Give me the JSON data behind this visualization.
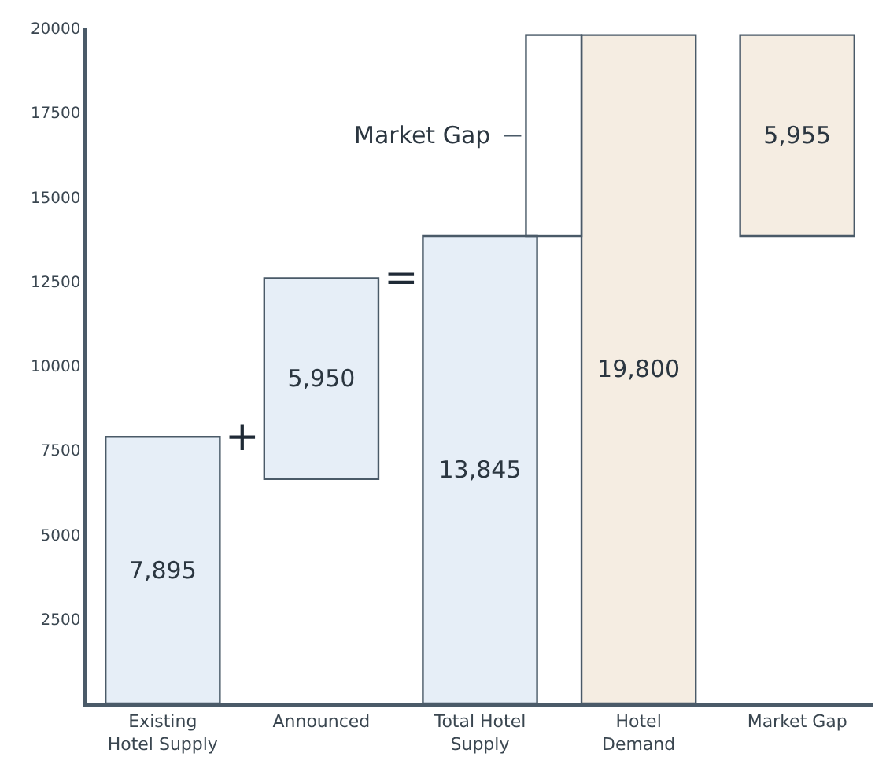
{
  "chart_data": {
    "type": "bar",
    "categories": [
      "Existing\nHotel Supply",
      "Announced",
      "Total Hotel\nSupply",
      "Hotel\nDemand",
      "Market Gap"
    ],
    "values": [
      7895,
      5950,
      13845,
      19800,
      5955
    ],
    "base": [
      0,
      6650,
      0,
      0,
      13845
    ],
    "colors": [
      "#e6eef7",
      "#e6eef7",
      "#e6eef7",
      "#f5ede2",
      "#f5ede2"
    ],
    "value_labels": [
      "7,895",
      "5,950",
      "13,845",
      "19,800",
      "5,955"
    ],
    "ylim": [
      0,
      20000
    ],
    "yticks": [
      2500,
      5000,
      7500,
      10000,
      12500,
      15000,
      17500,
      20000
    ],
    "annotations": [
      "+",
      "=",
      "Market Gap"
    ]
  }
}
